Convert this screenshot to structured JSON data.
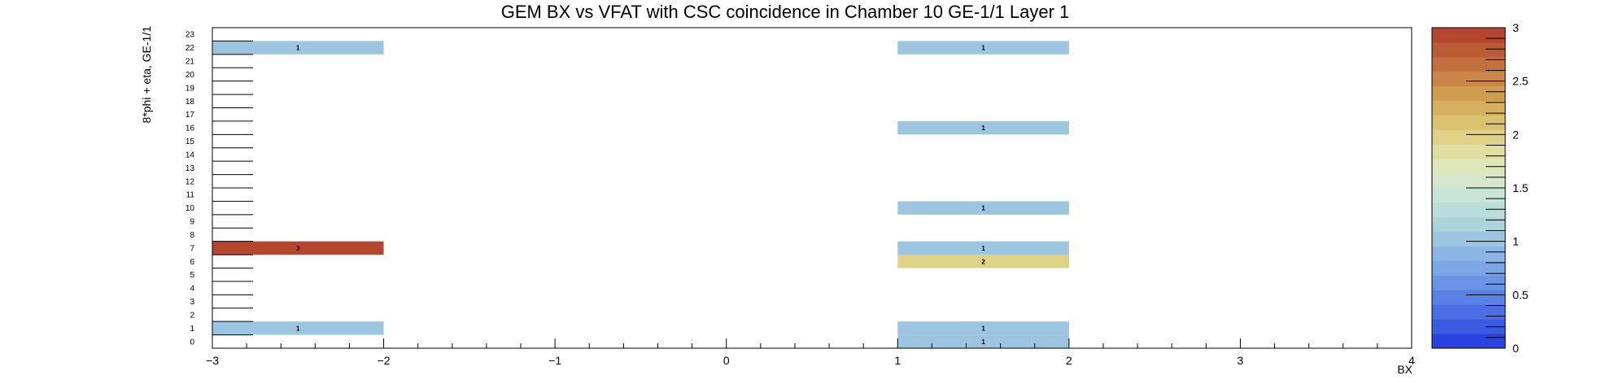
{
  "chart_data": {
    "type": "heatmap",
    "title": "GEM BX vs VFAT with CSC coincidence in Chamber 10 GE-1/1 Layer 1",
    "xlabel": "BX",
    "ylabel": "8*phi + eta, GE-1/1",
    "xlim": [
      -3,
      4
    ],
    "ylim": [
      0,
      24
    ],
    "x_ticks": [
      -3,
      -2,
      -1,
      0,
      1,
      2,
      3,
      4
    ],
    "x_tick_labels": [
      "−3",
      "−2",
      "−1",
      "0",
      "1",
      "2",
      "3",
      "4"
    ],
    "y_tick_labels": [
      "0",
      "1",
      "2",
      "3",
      "4",
      "5",
      "6",
      "7",
      "8",
      "9",
      "10",
      "11",
      "12",
      "13",
      "14",
      "15",
      "16",
      "17",
      "18",
      "19",
      "20",
      "21",
      "22",
      "23"
    ],
    "z_range": [
      0,
      3
    ],
    "z_ticks": [
      0,
      0.5,
      1,
      1.5,
      2,
      2.5,
      3
    ],
    "z_tick_labels": [
      "0",
      "0.5",
      "1",
      "1.5",
      "2",
      "2.5",
      "3"
    ],
    "palette": [
      "#2a43e0",
      "#3a5ce3",
      "#4a6fe4",
      "#5a82e6",
      "#6a94e6",
      "#7aa5e6",
      "#8bb5e5",
      "#9bc5e0",
      "#aad3dc",
      "#badfda",
      "#c9e5d8",
      "#d6e8cc",
      "#dde7b8",
      "#e0dea0",
      "#dfd186",
      "#dbc270",
      "#d6b05e",
      "#d09c50",
      "#ca8646",
      "#c3703e",
      "#bc5a36",
      "#b4452f"
    ],
    "cells": [
      {
        "x": [
          -3,
          -2
        ],
        "y": 1,
        "value": 1
      },
      {
        "x": [
          -3,
          -2
        ],
        "y": 7,
        "value": 3
      },
      {
        "x": [
          -3,
          -2
        ],
        "y": 22,
        "value": 1
      },
      {
        "x": [
          1,
          2
        ],
        "y": 0,
        "value": 1
      },
      {
        "x": [
          1,
          2
        ],
        "y": 1,
        "value": 1
      },
      {
        "x": [
          1,
          2
        ],
        "y": 6,
        "value": 2
      },
      {
        "x": [
          1,
          2
        ],
        "y": 7,
        "value": 1
      },
      {
        "x": [
          1,
          2
        ],
        "y": 10,
        "value": 1
      },
      {
        "x": [
          1,
          2
        ],
        "y": 16,
        "value": 1
      },
      {
        "x": [
          1,
          2
        ],
        "y": 22,
        "value": 1
      }
    ]
  }
}
